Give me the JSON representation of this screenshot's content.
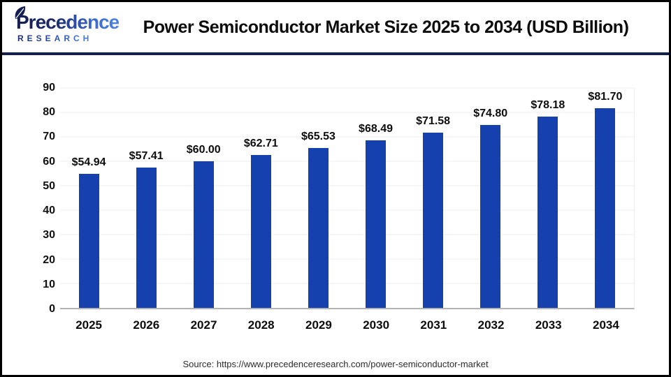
{
  "header": {
    "logo": {
      "brand": "Precedence",
      "subtitle": "RESEARCH"
    },
    "title": "Power Semiconductor Market Size 2025 to 2034 (USD Billion)"
  },
  "chart_data": {
    "type": "bar",
    "title": "Power Semiconductor Market Size 2025 to 2034 (USD Billion)",
    "categories": [
      "2025",
      "2026",
      "2027",
      "2028",
      "2029",
      "2030",
      "2031",
      "2032",
      "2033",
      "2034"
    ],
    "values": [
      54.94,
      57.41,
      60.0,
      62.71,
      65.53,
      68.49,
      71.58,
      74.8,
      78.18,
      81.7
    ],
    "value_labels": [
      "$54.94",
      "$57.41",
      "$60.00",
      "$62.71",
      "$65.53",
      "$68.49",
      "$71.58",
      "$74.80",
      "$78.18",
      "$81.70"
    ],
    "xlabel": "",
    "ylabel": "",
    "ylim": [
      0,
      90
    ],
    "yticks": [
      0,
      10,
      20,
      30,
      40,
      50,
      60,
      70,
      80,
      90
    ],
    "grid": "horizontal",
    "legend": "none",
    "bar_color": "#1441ad"
  },
  "footer": {
    "source": "Source: https://www.precedenceresearch.com/power-semiconductor-market"
  },
  "colors": {
    "bar": "#1441ad",
    "gridline": "#ededed",
    "baseline": "#b3b3b3",
    "header_rule": "#131f4e",
    "outer_border": "#000000",
    "title_text": "#0d0d0d",
    "source_text": "#2b2b2b",
    "logo_navy": "#1c2a6b",
    "logo_blue": "#4d82e4"
  }
}
